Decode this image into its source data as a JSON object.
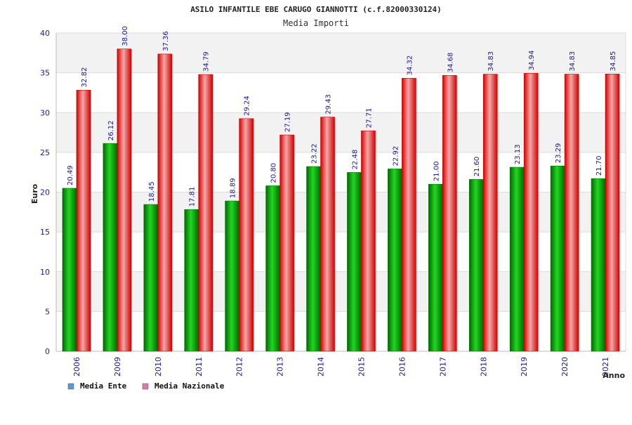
{
  "chart_data": {
    "type": "bar",
    "title": "ASILO INFANTILE EBE CARUGO GIANNOTTI (c.f.82000330124)",
    "subtitle": "Media Importi",
    "xlabel": "Anno",
    "ylabel": "Euro",
    "ylim": [
      0,
      40
    ],
    "yticks": [
      0,
      5,
      10,
      15,
      20,
      25,
      30,
      35,
      40
    ],
    "categories": [
      "2006",
      "2009",
      "2010",
      "2011",
      "2012",
      "2013",
      "2014",
      "2015",
      "2016",
      "2017",
      "2018",
      "2019",
      "2020",
      "2021"
    ],
    "series": [
      {
        "name": "Media Ente",
        "color": "#00a000",
        "legend_color": "#5b9bd5",
        "values": [
          20.49,
          26.12,
          18.45,
          17.81,
          18.89,
          20.8,
          23.22,
          22.48,
          22.92,
          21.0,
          21.6,
          23.13,
          23.29,
          21.7
        ],
        "labels": [
          "20.49",
          "26.12",
          "18.45",
          "17.81",
          "18.89",
          "20.80",
          "23.22",
          "22.48",
          "22.92",
          "21.00",
          "21.60",
          "23.13",
          "23.29",
          "21.70"
        ]
      },
      {
        "name": "Media Nazionale",
        "color": "#e00000",
        "legend_color": "#d97ab5",
        "values": [
          32.82,
          38.0,
          37.36,
          34.79,
          29.24,
          27.19,
          29.43,
          27.71,
          34.32,
          34.68,
          34.83,
          34.94,
          34.83,
          34.85
        ],
        "labels": [
          "32.82",
          "38.00",
          "37.36",
          "34.79",
          "29.24",
          "27.19",
          "29.43",
          "27.71",
          "34.32",
          "34.68",
          "34.83",
          "34.94",
          "34.83",
          "34.85"
        ]
      }
    ],
    "grid": true,
    "legend_position": "bottom-left"
  }
}
